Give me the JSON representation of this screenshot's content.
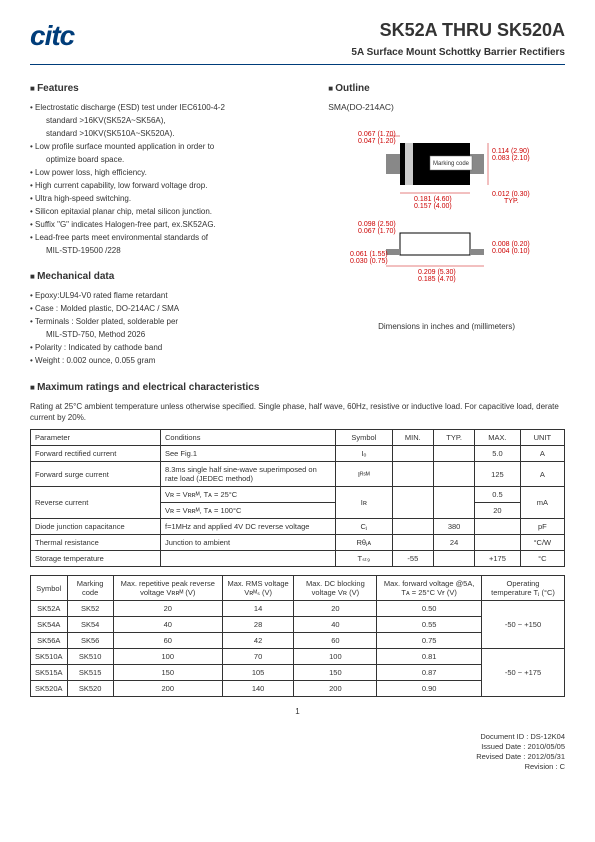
{
  "header": {
    "logo": "citc",
    "title": "SK52A THRU SK520A",
    "subtitle": "5A Surface Mount Schottky Barrier Rectifiers"
  },
  "features": {
    "title": "Features",
    "items": [
      "Electrostatic discharge (ESD) test under IEC6100-4-2",
      "standard >16KV(SK52A~SK56A),",
      "standard >10KV(SK510A~SK520A).",
      "Low profile surface mounted application in order to",
      "optimize board space.",
      "Low power loss, high efficiency.",
      "High current capability, low forward voltage drop.",
      "Ultra high-speed switching.",
      "Silicon epitaxial planar chip, metal silicon junction.",
      "Suffix \"G\" indicates Halogen-free part, ex.SK52AG.",
      "Lead-free parts meet environmental standards of",
      "MIL-STD-19500 /228"
    ],
    "sub_indices": [
      1,
      2,
      4,
      11
    ]
  },
  "mechdata": {
    "title": "Mechanical data",
    "items": [
      "Epoxy:UL94-V0 rated flame retardant",
      "Case : Molded plastic,  DO-214AC / SMA",
      "Terminals : Solder plated, solderable per",
      "MIL-STD-750, Method 2026",
      "Polarity : Indicated by cathode band",
      "Weight : 0.002 ounce,  0.055 gram"
    ],
    "sub_indices": [
      3
    ]
  },
  "outline": {
    "title": "Outline",
    "package": "SMA(DO-214AC)",
    "note": "Dimensions in inches and (millimeters)",
    "dims": {
      "a": "0.067 (1.70)",
      "b": "0.047 (1.20)",
      "c": "0.114 (2.90)",
      "d": "0.083 (2.10)",
      "e": "0.181 (4.60)",
      "f": "0.157 (4.00)",
      "g": "0.012 (0.30)",
      "gtyp": "TYP.",
      "h": "0.098 (2.50)",
      "i": "0.067 (1.70)",
      "j": "0.061 (1.55)",
      "k": "0.030 (0.75)",
      "l": "0.008 (0.20)",
      "m": "0.004 (0.10)",
      "n": "0.209 (5.30)",
      "o": "0.185 (4.70)",
      "marking": "Marking code"
    }
  },
  "ratings": {
    "title": "Maximum ratings and electrical characteristics",
    "note": "Rating at 25°C ambient  temperature  unless  otherwise  specified. Single phase, half wave, 60Hz, resistive or inductive load. For capacitive load, derate current by 20%.",
    "headers": [
      "Parameter",
      "Conditions",
      "Symbol",
      "MIN.",
      "TYP.",
      "MAX.",
      "UNIT"
    ],
    "rows": [
      {
        "param": "Forward rectified current",
        "cond": "See Fig.1",
        "sym": "Iₒ",
        "min": "",
        "typ": "",
        "max": "5.0",
        "unit": "A"
      },
      {
        "param": "Forward surge current",
        "cond": "8.3ms single half sine-wave superimposed on rate load (JEDEC method)",
        "sym": "Iᴿˢᴹ",
        "min": "",
        "typ": "",
        "max": "125",
        "unit": "A"
      },
      {
        "param": "Reverse current",
        "cond": "Vʀ = Vʀʀᴹ, Tᴀ = 25°C",
        "sym": "Iʀ",
        "min": "",
        "typ": "",
        "max": "0.5",
        "unit": "mA",
        "rowspan": true
      },
      {
        "param": "",
        "cond": "Vʀ = Vʀʀᴹ, Tᴀ = 100°C",
        "sym": "",
        "min": "",
        "typ": "",
        "max": "20",
        "unit": ""
      },
      {
        "param": "Diode junction capacitance",
        "cond": "f=1MHz and applied 4V DC reverse voltage",
        "sym": "Cⱼ",
        "min": "",
        "typ": "380",
        "max": "",
        "unit": "pF"
      },
      {
        "param": "Thermal resistance",
        "cond": "Junction to ambient",
        "sym": "Rθⱼᴀ",
        "min": "",
        "typ": "24",
        "max": "",
        "unit": "°C/W"
      },
      {
        "param": "Storage temperature",
        "cond": "",
        "sym": "Tₛₜ₉",
        "min": "-55",
        "typ": "",
        "max": "+175",
        "unit": "°C"
      }
    ]
  },
  "parts": {
    "headers": [
      "Symbol",
      "Marking code",
      "Max. repetitive peak reverse voltage Vʀʀᴹ (V)",
      "Max. RMS voltage Vʀᴹₛ (V)",
      "Max. DC blocking voltage Vʀ (V)",
      "Max. forward voltage @5A, Tᴀ = 25°C Vғ (V)",
      "Operating temperature Tⱼ (°C)"
    ],
    "rows": [
      [
        "SK52A",
        "SK52",
        "20",
        "14",
        "20",
        "0.50"
      ],
      [
        "SK54A",
        "SK54",
        "40",
        "28",
        "40",
        "0.55"
      ],
      [
        "SK56A",
        "SK56",
        "60",
        "42",
        "60",
        "0.75"
      ],
      [
        "SK510A",
        "SK510",
        "100",
        "70",
        "100",
        "0.81"
      ],
      [
        "SK515A",
        "SK515",
        "150",
        "105",
        "150",
        "0.87"
      ],
      [
        "SK520A",
        "SK520",
        "200",
        "140",
        "200",
        "0.90"
      ]
    ],
    "opTemps": [
      "-50 ~ +150",
      "-50 ~ +175"
    ]
  },
  "footer": {
    "doc": "Document ID : DS-12K04",
    "issued": "Issued Date : 2010/05/05",
    "revised": "Revised Date : 2012/05/31",
    "rev": "Revision : C",
    "page": "1"
  },
  "colors": {
    "brand": "#003d7a",
    "red": "#c00000"
  }
}
